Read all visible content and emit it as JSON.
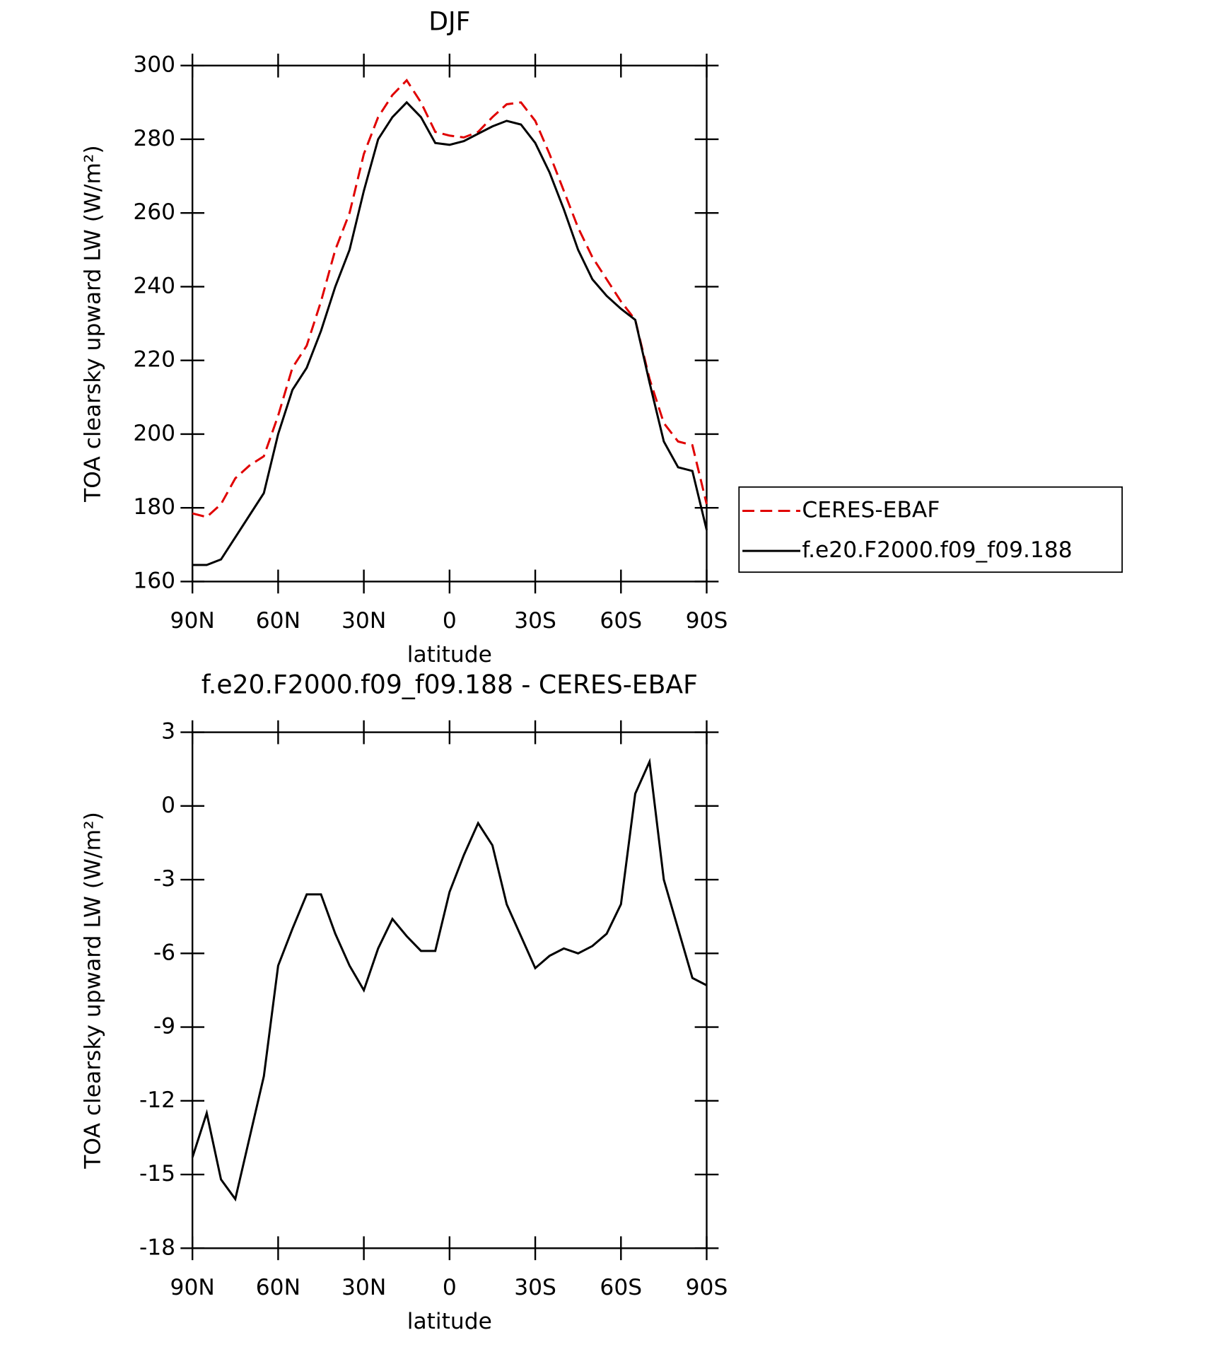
{
  "chart_data": [
    {
      "type": "line",
      "title": "DJF",
      "x_label": "latitude",
      "y_label": "TOA clearsky upward LW (W/m²)",
      "x": [
        90,
        85,
        80,
        75,
        70,
        65,
        60,
        55,
        50,
        45,
        40,
        35,
        30,
        25,
        20,
        15,
        10,
        5,
        0,
        -5,
        -10,
        -15,
        -20,
        -25,
        -30,
        -35,
        -40,
        -45,
        -50,
        -55,
        -60,
        -65,
        -70,
        -75,
        -80,
        -85,
        -90
      ],
      "xlim": [
        90,
        -90
      ],
      "xticks": [
        {
          "value": 90,
          "label": "90N"
        },
        {
          "value": 60,
          "label": "60N"
        },
        {
          "value": 30,
          "label": "30N"
        },
        0,
        {
          "value": -30,
          "label": "30S"
        },
        {
          "value": -60,
          "label": "60S"
        },
        {
          "value": -90,
          "label": "90S"
        }
      ],
      "ylim": [
        160,
        300
      ],
      "yticks": [
        160,
        180,
        200,
        220,
        240,
        260,
        280,
        300
      ],
      "legend": "right",
      "series": [
        {
          "name": "CERES-EBAF",
          "color": "#e00000",
          "dash": true,
          "values": [
            178.5,
            177.5,
            181,
            188,
            191.5,
            194,
            205,
            218,
            224,
            236,
            250,
            260,
            276,
            286,
            292,
            296,
            290,
            282,
            281,
            280.5,
            282,
            286,
            289.5,
            290,
            285,
            276,
            266,
            256,
            248,
            242,
            236,
            231,
            215,
            203,
            198,
            197,
            181
          ]
        },
        {
          "name": "f.e20.F2000.f09_f09.188",
          "color": "#000000",
          "dash": false,
          "values": [
            164.5,
            164.5,
            166,
            172,
            178,
            184,
            200,
            212,
            218,
            228,
            240,
            250,
            266,
            280,
            286,
            290,
            286,
            279,
            278.5,
            279.5,
            281.5,
            283.5,
            285,
            284,
            279,
            271,
            261,
            250,
            242,
            237.5,
            234,
            231,
            214,
            198,
            191,
            190,
            174
          ]
        }
      ]
    },
    {
      "type": "line",
      "title": "f.e20.F2000.f09_f09.188 - CERES-EBAF",
      "x_label": "latitude",
      "y_label": "TOA clearsky upward LW (W/m²)",
      "x": [
        90,
        85,
        80,
        75,
        70,
        65,
        60,
        55,
        50,
        45,
        40,
        35,
        30,
        25,
        20,
        15,
        10,
        5,
        0,
        -5,
        -10,
        -15,
        -20,
        -25,
        -30,
        -35,
        -40,
        -45,
        -50,
        -55,
        -60,
        -65,
        -70,
        -75,
        -80,
        -85,
        -90
      ],
      "xlim": [
        90,
        -90
      ],
      "xticks": [
        {
          "value": 90,
          "label": "90N"
        },
        {
          "value": 60,
          "label": "60N"
        },
        {
          "value": 30,
          "label": "30N"
        },
        0,
        {
          "value": -30,
          "label": "30S"
        },
        {
          "value": -60,
          "label": "60S"
        },
        {
          "value": -90,
          "label": "90S"
        }
      ],
      "ylim": [
        -18,
        3
      ],
      "yticks": [
        -18,
        -15,
        -12,
        -9,
        -6,
        -3,
        0,
        3
      ],
      "series": [
        {
          "color": "#000000",
          "dash": false,
          "values": [
            -14.3,
            -12.5,
            -15.2,
            -16,
            -13.5,
            -11,
            -6.5,
            -5,
            -3.6,
            -3.6,
            -5.2,
            -6.5,
            -7.5,
            -5.8,
            -4.6,
            -5.3,
            -5.9,
            -5.9,
            -3.5,
            -2,
            -0.7,
            -1.6,
            -4,
            -5.3,
            -6.6,
            -6.1,
            -5.8,
            -6,
            -5.7,
            -5.2,
            -4,
            0.5,
            1.8,
            -3,
            -5,
            -7,
            -7.3
          ]
        }
      ]
    }
  ]
}
